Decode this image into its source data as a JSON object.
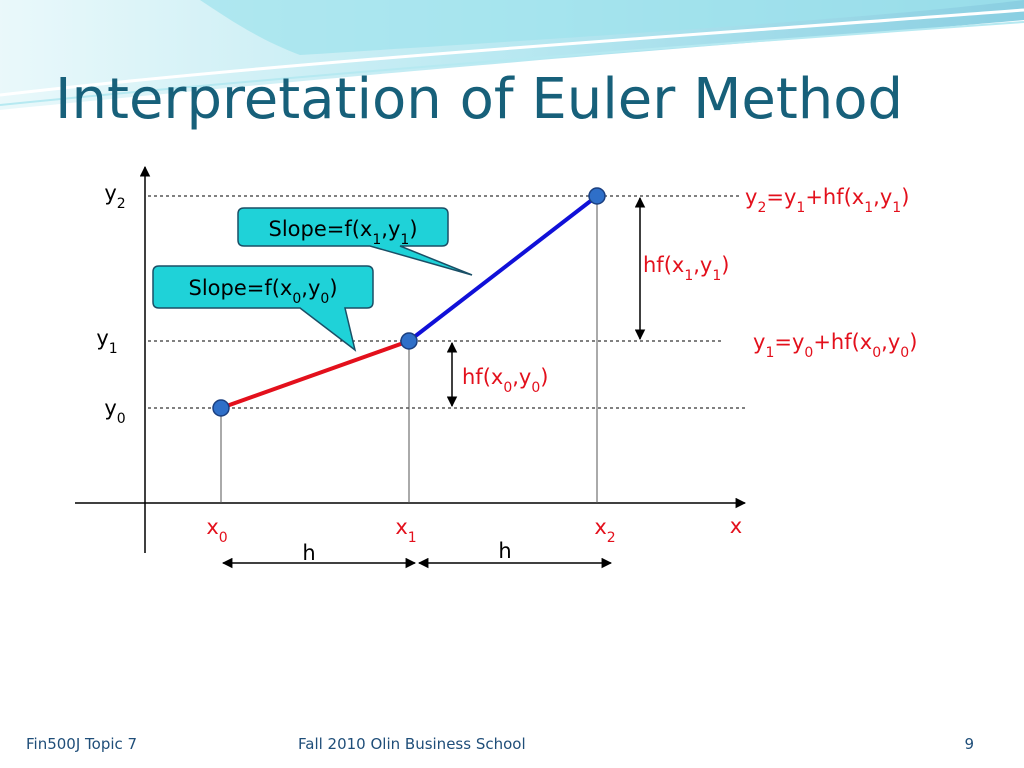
{
  "title": "Interpretation of Euler Method",
  "x_axis_label": "x",
  "y_labels": [
    [
      "y",
      "2"
    ],
    [
      "y",
      "1"
    ],
    [
      "y",
      "0"
    ]
  ],
  "x_labels": [
    [
      "x",
      "0"
    ],
    [
      "x",
      "1"
    ],
    [
      "x",
      "2"
    ]
  ],
  "step_labels": [
    "h",
    "h"
  ],
  "callouts": [
    [
      "Slope=f(x",
      "1",
      ",y",
      "1",
      ")"
    ],
    [
      "Slope=f(x",
      "0",
      ",y",
      "0",
      ")"
    ]
  ],
  "increments": [
    [
      "hf(x",
      "1",
      ",y",
      "1",
      ")"
    ],
    [
      "hf(x",
      "0",
      ",y",
      "0",
      ")"
    ]
  ],
  "equations": [
    [
      "y",
      "2",
      "=y",
      "1",
      "+hf(x",
      "1",
      ",y",
      "1",
      ")"
    ],
    [
      "y",
      "1",
      "=y",
      "0",
      "+hf(x",
      "0",
      ",y",
      "0",
      ")"
    ]
  ],
  "footer": {
    "left": "Fin500J  Topic 7",
    "center": "Fall 2010  Olin Business School",
    "page": 9
  }
}
